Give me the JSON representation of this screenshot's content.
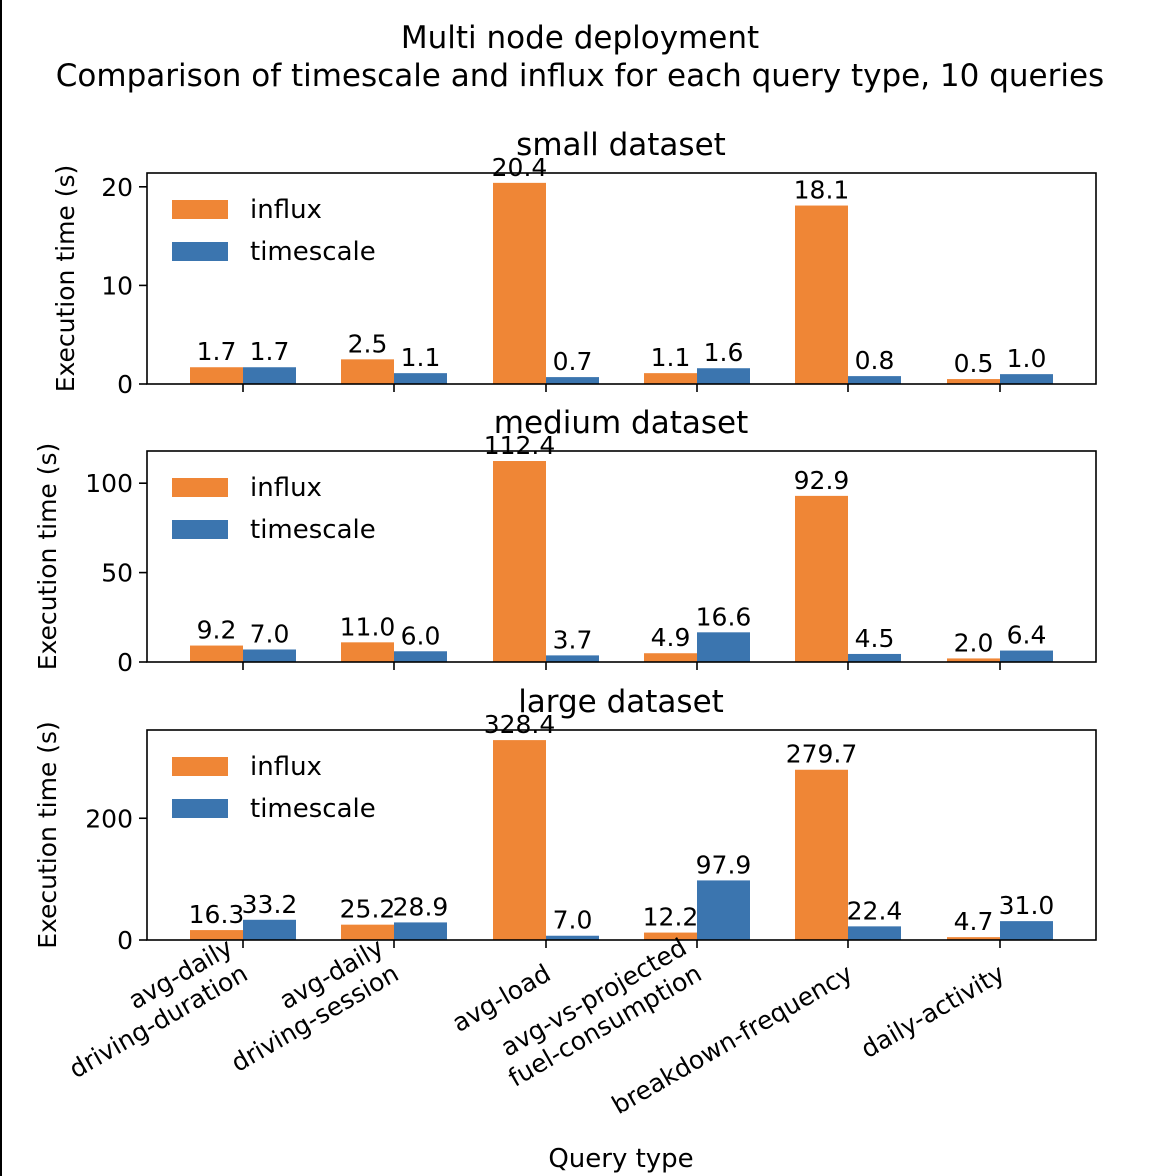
{
  "figure": {
    "title_line1": "Multi node deployment",
    "title_line2": "Comparison of timescale and influx for each query type, 10 queries",
    "xlabel": "Query type"
  },
  "colors": {
    "influx": "#ef8636",
    "timescale": "#3b75af"
  },
  "chart_data": [
    {
      "type": "bar",
      "title": "small dataset",
      "ylabel": "Execution time (s)",
      "categories": [
        "avg-daily\ndriving-duration",
        "avg-daily\ndriving-session",
        "avg-load",
        "avg-vs-projected\nfuel-consumption",
        "breakdown-frequency",
        "daily-activity"
      ],
      "ylim": [
        0,
        21.4
      ],
      "yticks": [
        0,
        10,
        20
      ],
      "legend": "top-left",
      "grid": false,
      "series": [
        {
          "name": "influx",
          "values": [
            1.7,
            2.5,
            20.4,
            1.1,
            18.1,
            0.5
          ],
          "labels": [
            "1.7",
            "2.5",
            "20.4",
            "1.1",
            "18.1",
            "0.5"
          ]
        },
        {
          "name": "timescale",
          "values": [
            1.7,
            1.1,
            0.7,
            1.6,
            0.8,
            1.0
          ],
          "labels": [
            "1.7",
            "1.1",
            "0.7",
            "1.6",
            "0.8",
            "1.0"
          ]
        }
      ]
    },
    {
      "type": "bar",
      "title": "medium dataset",
      "ylabel": "Execution time (s)",
      "categories": [
        "avg-daily\ndriving-duration",
        "avg-daily\ndriving-session",
        "avg-load",
        "avg-vs-projected\nfuel-consumption",
        "breakdown-frequency",
        "daily-activity"
      ],
      "ylim": [
        0,
        118
      ],
      "yticks": [
        0,
        50,
        100
      ],
      "legend": "top-left",
      "grid": false,
      "series": [
        {
          "name": "influx",
          "values": [
            9.2,
            11.0,
            112.4,
            4.9,
            92.9,
            2.0
          ],
          "labels": [
            "9.2",
            "11.0",
            "112.4",
            "4.9",
            "92.9",
            "2.0"
          ]
        },
        {
          "name": "timescale",
          "values": [
            7.0,
            6.0,
            3.7,
            16.6,
            4.5,
            6.4
          ],
          "labels": [
            "7.0",
            "6.0",
            "3.7",
            "16.6",
            "4.5",
            "6.4"
          ]
        }
      ]
    },
    {
      "type": "bar",
      "title": "large dataset",
      "ylabel": "Execution time (s)",
      "categories": [
        "avg-daily\ndriving-duration",
        "avg-daily\ndriving-session",
        "avg-load",
        "avg-vs-projected\nfuel-consumption",
        "breakdown-frequency",
        "daily-activity"
      ],
      "ylim": [
        0,
        345
      ],
      "yticks": [
        0,
        200
      ],
      "legend": "top-left",
      "grid": false,
      "series": [
        {
          "name": "influx",
          "values": [
            16.3,
            25.2,
            328.4,
            12.2,
            279.7,
            4.7
          ],
          "labels": [
            "16.3",
            "25.2",
            "328.4",
            "12.2",
            "279.7",
            "4.7"
          ]
        },
        {
          "name": "timescale",
          "values": [
            33.2,
            28.9,
            7.0,
            97.9,
            22.4,
            31.0
          ],
          "labels": [
            "33.2",
            "28.9",
            "7.0",
            "97.9",
            "22.4",
            "31.0"
          ]
        }
      ]
    }
  ]
}
